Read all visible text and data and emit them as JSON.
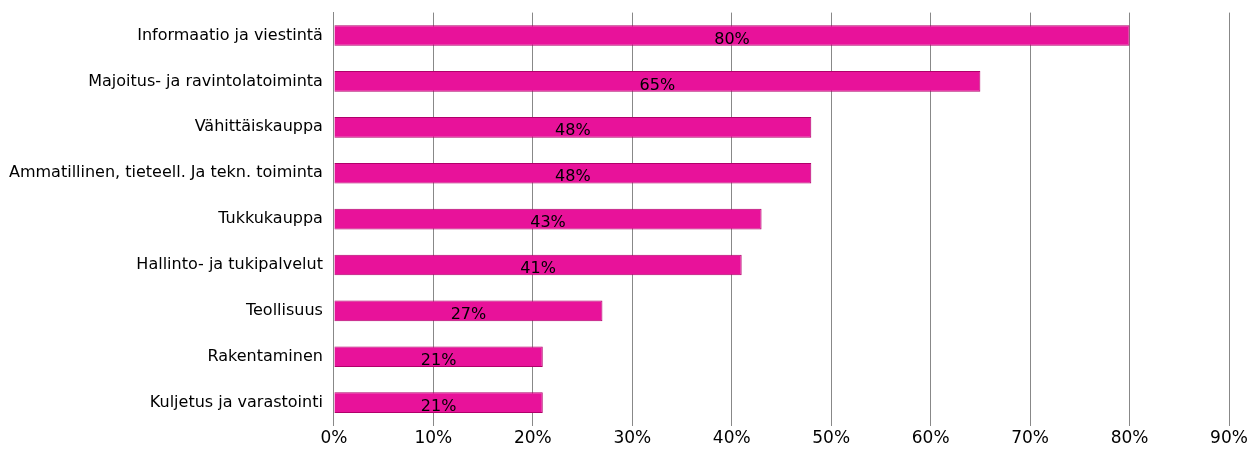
{
  "chart_data": {
    "type": "bar",
    "orientation": "horizontal",
    "categories": [
      "Informaatio ja viestintä",
      "Majoitus- ja ravintolatoiminta",
      "Vähittäiskauppa",
      "Ammatillinen, tieteell. Ja tekn. toiminta",
      "Tukkukauppa",
      "Hallinto- ja tukipalvelut",
      "Teollisuus",
      "Rakentaminen",
      "Kuljetus ja varastointi"
    ],
    "values": [
      80,
      65,
      48,
      48,
      43,
      41,
      27,
      21,
      21
    ],
    "value_labels": [
      "80%",
      "65%",
      "48%",
      "48%",
      "43%",
      "41%",
      "27%",
      "21%",
      "21%"
    ],
    "color": "#e8129a",
    "xlim": [
      0,
      90
    ],
    "xticks": [
      {
        "value": 0,
        "label": "0%"
      },
      {
        "value": 10,
        "label": "10%"
      },
      {
        "value": 20,
        "label": "20%"
      },
      {
        "value": 30,
        "label": "30%"
      },
      {
        "value": 40,
        "label": "40%"
      },
      {
        "value": 50,
        "label": "50%"
      },
      {
        "value": 60,
        "label": "60%"
      },
      {
        "value": 70,
        "label": "70%"
      },
      {
        "value": 80,
        "label": "80%"
      },
      {
        "value": 90,
        "label": "90%"
      }
    ],
    "grid": "x",
    "legend": false
  }
}
